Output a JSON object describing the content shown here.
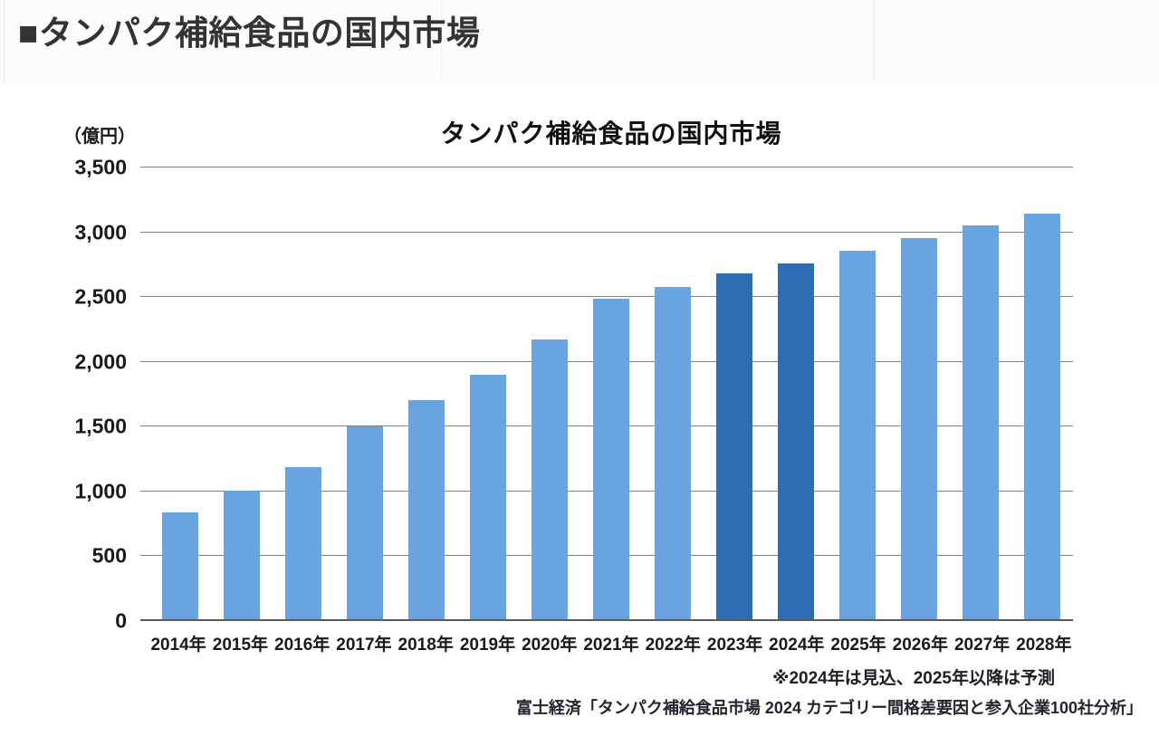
{
  "page": {
    "header_title": "■タンパク補給食品の国内市場"
  },
  "chart_data": {
    "type": "bar",
    "title": "タンパク補給食品の国内市場",
    "unit_label": "（億円）",
    "categories": [
      "2014年",
      "2015年",
      "2016年",
      "2017年",
      "2018年",
      "2019年",
      "2020年",
      "2021年",
      "2022年",
      "2023年",
      "2024年",
      "2025年",
      "2026年",
      "2027年",
      "2028年"
    ],
    "values": [
      840,
      1005,
      1190,
      1500,
      1705,
      1900,
      2170,
      2490,
      2575,
      2682,
      2763,
      2855,
      2955,
      3055,
      3147
    ],
    "highlight_indices": [
      9,
      10
    ],
    "ylim": [
      0,
      3500
    ],
    "yticks": [
      0,
      500,
      1000,
      1500,
      2000,
      2500,
      3000,
      3500
    ],
    "ytick_labels": [
      "0",
      "500",
      "1,000",
      "1,500",
      "2,000",
      "2,500",
      "3,000",
      "3,500"
    ],
    "xlabel": "",
    "ylabel": "（億円）",
    "grid": "horizontal",
    "legend": "none",
    "colors": {
      "bar": "#68a3e2",
      "bar_highlight": "#2e6cb3",
      "gridline": "#808080",
      "baseline": "#595959"
    },
    "footnote": "※2024年は見込、2025年以降は予測",
    "source": "富士経済「タンパク補給食品市場 2024 カテゴリー間格差要因と参入企業100社分析」"
  }
}
